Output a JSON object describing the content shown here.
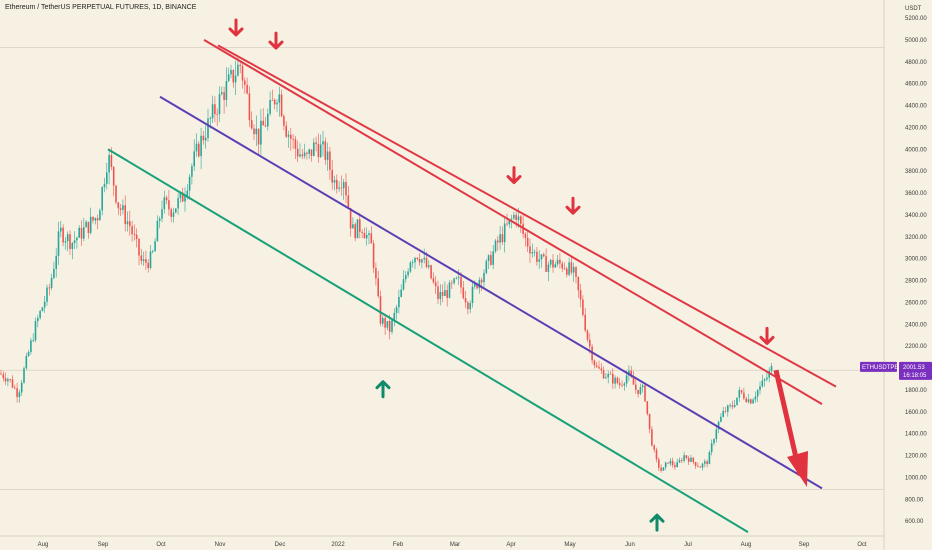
{
  "title": "Ethereum / TetherUS PERPETUAL FUTURES, 1D, BINANCE",
  "colors": {
    "background": "#f6f1e2",
    "up": "#26a69a",
    "down": "#ef5350",
    "red_line": "#e03845",
    "purple_line": "#5a3fb5",
    "green_line": "#18a07a",
    "arrow_red": "#e0323f",
    "arrow_green": "#0f8a6b",
    "badge": "#7b2fbe"
  },
  "chart_data": {
    "type": "candlestick",
    "y_unit": "USDT",
    "x_ticks": [
      "Aug",
      "Sep",
      "Oct",
      "Nov",
      "Dec",
      "2022",
      "Feb",
      "Mar",
      "Apr",
      "May",
      "Jun",
      "Jul",
      "Aug",
      "Sep",
      "Oct"
    ],
    "y_ticks": [
      "5200.00",
      "5000.00",
      "4800.00",
      "4600.00",
      "4400.00",
      "4200.00",
      "4000.00",
      "3800.00",
      "3600.00",
      "3400.00",
      "3200.00",
      "3000.00",
      "2800.00",
      "2600.00",
      "2400.00",
      "2200.00",
      "1800.00",
      "1600.00",
      "1400.00",
      "1200.00",
      "1000.00",
      "800.00",
      "600.00"
    ],
    "ylim": [
      500,
      5300
    ],
    "current_price": {
      "symbol": "ETHUSDTPERP",
      "price": "2001.53",
      "countdown": "16:18:05"
    },
    "price_path": [
      {
        "x": 0,
        "y": 1950
      },
      {
        "x": 9,
        "y": 1900
      },
      {
        "x": 18,
        "y": 1760
      },
      {
        "x": 24,
        "y": 1980
      },
      {
        "x": 36,
        "y": 2400
      },
      {
        "x": 50,
        "y": 2750
      },
      {
        "x": 60,
        "y": 3250
      },
      {
        "x": 72,
        "y": 3150
      },
      {
        "x": 88,
        "y": 3300
      },
      {
        "x": 98,
        "y": 3400
      },
      {
        "x": 108,
        "y": 3950
      },
      {
        "x": 118,
        "y": 3500
      },
      {
        "x": 130,
        "y": 3300
      },
      {
        "x": 142,
        "y": 2950
      },
      {
        "x": 152,
        "y": 3000
      },
      {
        "x": 162,
        "y": 3500
      },
      {
        "x": 172,
        "y": 3450
      },
      {
        "x": 182,
        "y": 3550
      },
      {
        "x": 192,
        "y": 3850
      },
      {
        "x": 202,
        "y": 4100
      },
      {
        "x": 212,
        "y": 4300
      },
      {
        "x": 222,
        "y": 4500
      },
      {
        "x": 232,
        "y": 4650
      },
      {
        "x": 240,
        "y": 4780
      },
      {
        "x": 250,
        "y": 4350
      },
      {
        "x": 258,
        "y": 4100
      },
      {
        "x": 268,
        "y": 4300
      },
      {
        "x": 278,
        "y": 4550
      },
      {
        "x": 286,
        "y": 4200
      },
      {
        "x": 296,
        "y": 4000
      },
      {
        "x": 306,
        "y": 3900
      },
      {
        "x": 316,
        "y": 4050
      },
      {
        "x": 326,
        "y": 3950
      },
      {
        "x": 334,
        "y": 3700
      },
      {
        "x": 344,
        "y": 3750
      },
      {
        "x": 352,
        "y": 3250
      },
      {
        "x": 362,
        "y": 3300
      },
      {
        "x": 372,
        "y": 3100
      },
      {
        "x": 380,
        "y": 2450
      },
      {
        "x": 390,
        "y": 2350
      },
      {
        "x": 400,
        "y": 2650
      },
      {
        "x": 410,
        "y": 3000
      },
      {
        "x": 418,
        "y": 3050
      },
      {
        "x": 428,
        "y": 2900
      },
      {
        "x": 438,
        "y": 2650
      },
      {
        "x": 448,
        "y": 2700
      },
      {
        "x": 458,
        "y": 2800
      },
      {
        "x": 468,
        "y": 2600
      },
      {
        "x": 478,
        "y": 2800
      },
      {
        "x": 488,
        "y": 2950
      },
      {
        "x": 498,
        "y": 3150
      },
      {
        "x": 508,
        "y": 3300
      },
      {
        "x": 516,
        "y": 3420
      },
      {
        "x": 524,
        "y": 3200
      },
      {
        "x": 534,
        "y": 3050
      },
      {
        "x": 544,
        "y": 2950
      },
      {
        "x": 554,
        "y": 2950
      },
      {
        "x": 564,
        "y": 2950
      },
      {
        "x": 574,
        "y": 2850
      },
      {
        "x": 582,
        "y": 2550
      },
      {
        "x": 588,
        "y": 2250
      },
      {
        "x": 596,
        "y": 2000
      },
      {
        "x": 604,
        "y": 1950
      },
      {
        "x": 612,
        "y": 1900
      },
      {
        "x": 620,
        "y": 1850
      },
      {
        "x": 628,
        "y": 1950
      },
      {
        "x": 636,
        "y": 1800
      },
      {
        "x": 644,
        "y": 1800
      },
      {
        "x": 650,
        "y": 1400
      },
      {
        "x": 656,
        "y": 1150
      },
      {
        "x": 662,
        "y": 1050
      },
      {
        "x": 668,
        "y": 1150
      },
      {
        "x": 676,
        "y": 1100
      },
      {
        "x": 684,
        "y": 1200
      },
      {
        "x": 692,
        "y": 1150
      },
      {
        "x": 700,
        "y": 1100
      },
      {
        "x": 708,
        "y": 1150
      },
      {
        "x": 716,
        "y": 1450
      },
      {
        "x": 724,
        "y": 1600
      },
      {
        "x": 732,
        "y": 1650
      },
      {
        "x": 740,
        "y": 1780
      },
      {
        "x": 750,
        "y": 1700
      },
      {
        "x": 758,
        "y": 1800
      },
      {
        "x": 766,
        "y": 1900
      },
      {
        "x": 772,
        "y": 2000
      }
    ],
    "trendlines": [
      {
        "color": "red",
        "from": [
          218,
          4950
        ],
        "to": [
          836,
          1830
        ]
      },
      {
        "color": "red",
        "from": [
          204,
          5000
        ],
        "to": [
          822,
          1670
        ]
      },
      {
        "color": "purple",
        "from": [
          160,
          4480
        ],
        "to": [
          822,
          900
        ]
      },
      {
        "color": "green",
        "from": [
          108,
          4000
        ],
        "to": [
          748,
          500
        ]
      }
    ],
    "arrows_down": [
      {
        "x": 236,
        "y": 5100
      },
      {
        "x": 276,
        "y": 4980
      },
      {
        "x": 514,
        "y": 3750
      },
      {
        "x": 573,
        "y": 3470
      },
      {
        "x": 767,
        "y": 2280
      }
    ],
    "arrows_up": [
      {
        "x": 383,
        "y": 1820
      },
      {
        "x": 657,
        "y": 600
      }
    ],
    "projection_arrow": {
      "from": [
        776,
        1980
      ],
      "to": [
        800,
        930
      ]
    }
  }
}
